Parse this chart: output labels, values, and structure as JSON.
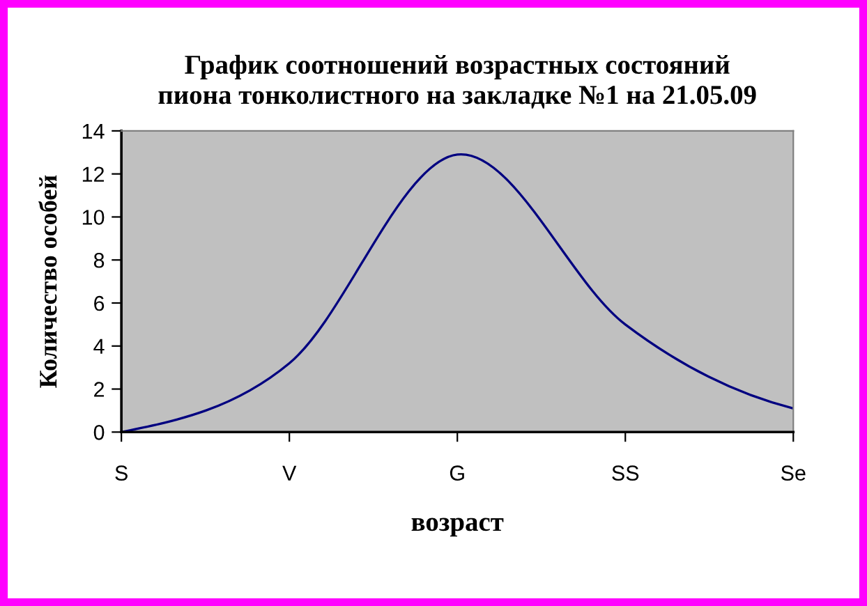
{
  "chart_data": {
    "type": "line",
    "title": "График соотношений возрастных состояний\nпиона тонколистного на закладке №1 на 21.05.09",
    "xlabel": "возраст",
    "ylabel": "Количество особей",
    "categories": [
      "S",
      "V",
      "G",
      "SS",
      "Se"
    ],
    "series": [
      {
        "color": "#000080",
        "values": [
          0,
          3.2,
          12.9,
          5.0,
          1.1
        ]
      }
    ],
    "ylim": [
      0,
      14
    ],
    "yticks": [
      0,
      2,
      4,
      6,
      8,
      10,
      12,
      14
    ],
    "grid": false,
    "legend": false,
    "marker": "none",
    "line_style": "solid"
  }
}
